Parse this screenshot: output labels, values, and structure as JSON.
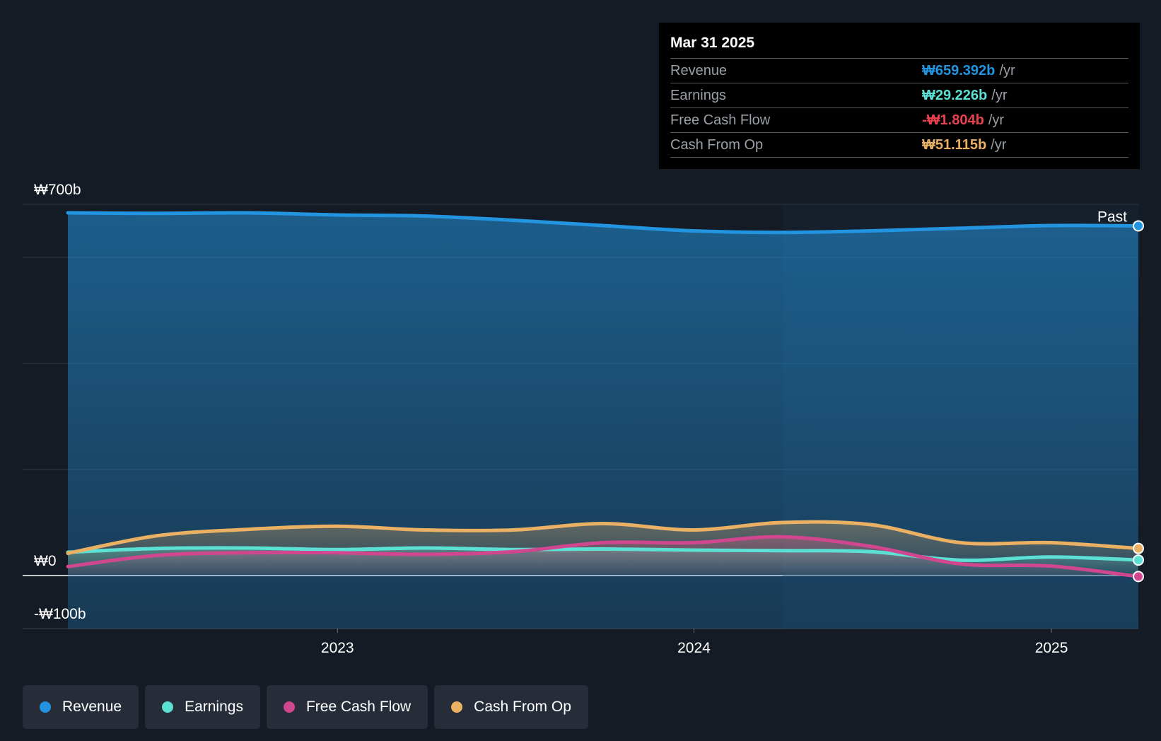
{
  "tooltip": {
    "date": "Mar 31 2025",
    "rows": [
      {
        "label": "Revenue",
        "value": "₩659.392b",
        "unit": "/yr",
        "color": "#2394e0"
      },
      {
        "label": "Earnings",
        "value": "₩29.226b",
        "unit": "/yr",
        "color": "#5ce0d4"
      },
      {
        "label": "Free Cash Flow",
        "value": "-₩1.804b",
        "unit": "/yr",
        "color": "#e8414f"
      },
      {
        "label": "Cash From Op",
        "value": "₩51.115b",
        "unit": "/yr",
        "color": "#eab064"
      }
    ]
  },
  "legend": [
    {
      "label": "Revenue",
      "color": "#2394e0"
    },
    {
      "label": "Earnings",
      "color": "#5ce0d4"
    },
    {
      "label": "Free Cash Flow",
      "color": "#d1478f"
    },
    {
      "label": "Cash From Op",
      "color": "#eab064"
    }
  ],
  "past_label": "Past",
  "chart_data": {
    "type": "area",
    "ylim": [
      -100,
      700
    ],
    "xlim": [
      "2022-03-31",
      "2025-03-31"
    ],
    "y_tick_labels": [
      {
        "value": 700,
        "label": "₩700b"
      },
      {
        "value": 0,
        "label": "₩0"
      },
      {
        "value": -100,
        "label": "-₩100b"
      }
    ],
    "x_tick_labels": [
      {
        "value": "2023-01-01",
        "label": "2023"
      },
      {
        "value": "2024-01-01",
        "label": "2024"
      },
      {
        "value": "2025-01-01",
        "label": "2025"
      }
    ],
    "unit": "₩ billions",
    "series": [
      {
        "name": "Revenue",
        "color": "#2394e0",
        "x": [
          "2022-03-31",
          "2022-06-30",
          "2022-09-30",
          "2022-12-31",
          "2023-03-31",
          "2023-06-30",
          "2023-09-30",
          "2023-12-31",
          "2024-03-31",
          "2024-06-30",
          "2024-09-30",
          "2024-12-31",
          "2025-03-31"
        ],
        "values": [
          684,
          683,
          684,
          680,
          678,
          670,
          660,
          650,
          647,
          650,
          655,
          660,
          659.392
        ]
      },
      {
        "name": "Earnings",
        "color": "#5ce0d4",
        "x": [
          "2022-03-31",
          "2022-06-30",
          "2022-09-30",
          "2022-12-31",
          "2023-03-31",
          "2023-06-30",
          "2023-09-30",
          "2023-12-31",
          "2024-03-31",
          "2024-06-30",
          "2024-09-30",
          "2024-12-31",
          "2025-03-31"
        ],
        "values": [
          44,
          51,
          52,
          49,
          52,
          49,
          50,
          48,
          47,
          45,
          29,
          35,
          29.226
        ]
      },
      {
        "name": "Free Cash Flow",
        "color": "#d1478f",
        "x": [
          "2022-03-31",
          "2022-06-30",
          "2022-09-30",
          "2022-12-31",
          "2023-03-31",
          "2023-06-30",
          "2023-09-30",
          "2023-12-31",
          "2024-03-31",
          "2024-06-30",
          "2024-09-30",
          "2024-12-31",
          "2025-03-31"
        ],
        "values": [
          17,
          38,
          43,
          43,
          40,
          45,
          62,
          62,
          73,
          55,
          22,
          18,
          -1.804
        ]
      },
      {
        "name": "Cash From Op",
        "color": "#eab064",
        "x": [
          "2022-03-31",
          "2022-06-30",
          "2022-09-30",
          "2022-12-31",
          "2023-03-31",
          "2023-06-30",
          "2023-09-30",
          "2023-12-31",
          "2024-03-31",
          "2024-06-30",
          "2024-09-30",
          "2024-12-31",
          "2025-03-31"
        ],
        "values": [
          42,
          75,
          87,
          93,
          86,
          86,
          98,
          86,
          100,
          96,
          62,
          62,
          51.115
        ]
      }
    ],
    "grid": true,
    "legend_position": "bottom-left"
  }
}
